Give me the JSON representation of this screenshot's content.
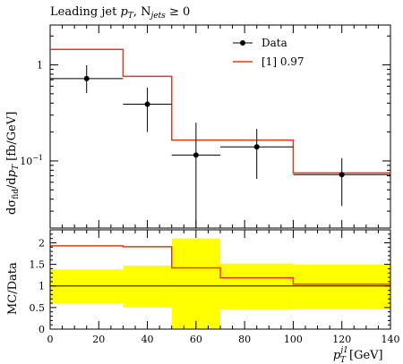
{
  "chart_data": [
    {
      "type": "line",
      "panel": "main",
      "title": "Leading jet p_T, N_jets ≥ 0",
      "title_parts": {
        "pre": "Leading jet ",
        "p": "p",
        "sub": "T",
        "mid": ", N",
        "sub2": "jets",
        "post": " ≥ 0"
      },
      "ylabel": "dσ_fid/dp_T [fb/GeV]",
      "ylabel_parts": {
        "a": "dσ",
        "a_sub": "fid",
        "b": "/d",
        "c": "p",
        "c_sub": "T",
        "d": " [fb/GeV]"
      },
      "yscale": "log",
      "xlim": [
        0,
        140
      ],
      "ylim": [
        0.02,
        2.6
      ],
      "yticks": [
        {
          "value": 1,
          "label": "1"
        },
        {
          "value": 0.1,
          "label": "10",
          "sup": "−1"
        }
      ],
      "bin_edges": [
        0,
        30,
        50,
        70,
        100,
        140
      ],
      "series": [
        {
          "name": "Data",
          "style": "points",
          "color": "#000000",
          "x": [
            15,
            40,
            60,
            85,
            120
          ],
          "y": [
            0.72,
            0.39,
            0.115,
            0.14,
            0.072
          ],
          "y_err_up": [
            0.27,
            0.19,
            0.135,
            0.075,
            0.035
          ],
          "y_err_down": [
            0.21,
            0.19,
            0.095,
            0.075,
            0.038
          ],
          "x_err": [
            15,
            10,
            10,
            15,
            20
          ]
        },
        {
          "name": "[1] 0.97",
          "style": "step",
          "color": "#ee3311",
          "values": [
            1.45,
            0.76,
            0.165,
            0.165,
            0.075
          ]
        }
      ],
      "legend_position": "top-right"
    },
    {
      "type": "line",
      "panel": "ratio",
      "ylabel": "MC/Data",
      "xlabel_parts": {
        "p": "p",
        "sup": "j1",
        "sub": "T",
        "unit": " [GeV]"
      },
      "xlim": [
        0,
        140
      ],
      "ylim": [
        0,
        2.3
      ],
      "xticks": [
        0,
        20,
        40,
        60,
        80,
        100,
        120,
        140
      ],
      "yticks": [
        "0",
        "0.5",
        "1",
        "1.5",
        "2"
      ],
      "band_color": "#ffff00",
      "data_uncertainty_band": {
        "bin_edges": [
          0,
          30,
          50,
          70,
          100,
          140
        ],
        "low": [
          0.6,
          0.5,
          0.0,
          0.45,
          0.47
        ],
        "high": [
          1.38,
          1.47,
          2.1,
          1.52,
          1.5
        ]
      },
      "series": [
        {
          "name": "[1] 0.97",
          "style": "step",
          "color": "#ee3311",
          "values": [
            1.93,
            1.91,
            1.42,
            1.19,
            1.04
          ]
        }
      ],
      "reference_line": 1
    }
  ]
}
